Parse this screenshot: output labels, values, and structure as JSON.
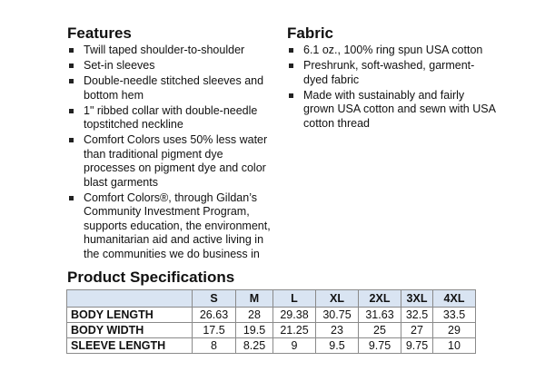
{
  "features": {
    "title": "Features",
    "items": [
      "Twill taped shoulder-to-shoulder",
      "Set-in sleeves",
      "Double-needle stitched sleeves and bottom hem",
      "1\" ribbed collar with double-needle topstitched neckline",
      "Comfort Colors uses 50% less water than traditional pigment dye processes on pigment dye and color blast garments",
      "Comfort Colors®, through Gildan’s Community Investment Program, supports education, the environment, humanitarian aid and active living in the communities we do business in"
    ]
  },
  "fabric": {
    "title": "Fabric",
    "items": [
      "6.1 oz., 100% ring spun USA cotton",
      "Preshrunk, soft-washed, garment-dyed fabric",
      "Made with sustainably and fairly grown USA cotton and sewn with USA cotton thread"
    ]
  },
  "specs": {
    "title": "Product Specifications",
    "sizes": [
      "S",
      "M",
      "L",
      "XL",
      "2XL",
      "3XL",
      "4XL"
    ],
    "rows": [
      {
        "label": "BODY LENGTH",
        "values": [
          "26.63",
          "28",
          "29.38",
          "30.75",
          "31.63",
          "32.5",
          "33.5"
        ]
      },
      {
        "label": "BODY WIDTH",
        "values": [
          "17.5",
          "19.5",
          "21.25",
          "23",
          "25",
          "27",
          "29"
        ]
      },
      {
        "label": "SLEEVE LENGTH",
        "values": [
          "8",
          "8.25",
          "9",
          "9.5",
          "9.75",
          "9.75",
          "10"
        ]
      }
    ],
    "header_color": "#d9e4f2"
  }
}
